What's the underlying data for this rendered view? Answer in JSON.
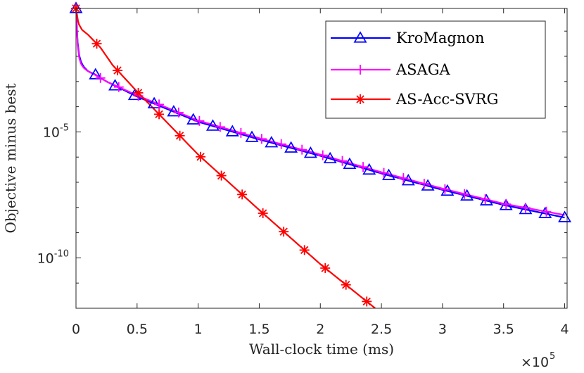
{
  "chart_data": {
    "type": "line",
    "xlabel": "Wall-clock time (ms)",
    "ylabel": "Objective minus best",
    "x_multiplier": "×10",
    "x_multiplier_exponent": "5",
    "xlim": [
      0,
      4.02
    ],
    "ylog10_lim": [
      -12,
      -0.1
    ],
    "x_tick_values": [
      0,
      0.5,
      1,
      1.5,
      2,
      2.5,
      3,
      3.5,
      4
    ],
    "x_tick_labels": [
      "0",
      "0.5",
      "1",
      "1.5",
      "2",
      "2.5",
      "3",
      "3.5",
      "4"
    ],
    "y_tick_log_values": [
      -5,
      -10
    ],
    "y_tick_labels": [
      {
        "base": "10",
        "exp": "-5"
      },
      {
        "base": "10",
        "exp": "-10"
      }
    ],
    "series": [
      {
        "name": "KroMagnon",
        "color": "#0000ff",
        "marker": "triangle",
        "x": [
          0,
          0.01,
          0.03,
          0.06,
          0.1,
          0.15,
          0.25,
          0.5,
          0.8,
          1.0,
          1.5,
          2.0,
          2.5,
          3.0,
          3.5,
          4.0
        ],
        "log10_y": [
          -0.1,
          -1.3,
          -2.1,
          -2.4,
          -2.6,
          -2.7,
          -3.0,
          -3.6,
          -4.2,
          -4.6,
          -5.3,
          -5.95,
          -6.65,
          -7.3,
          -7.9,
          -8.4
        ],
        "markers_x": [
          0,
          0.16,
          0.32,
          0.48,
          0.64,
          0.8,
          0.96,
          1.12,
          1.28,
          1.44,
          1.6,
          1.76,
          1.92,
          2.08,
          2.24,
          2.4,
          2.56,
          2.72,
          2.88,
          3.04,
          3.2,
          3.36,
          3.52,
          3.68,
          3.84,
          4.0
        ]
      },
      {
        "name": "ASAGA",
        "color": "#ff00ff",
        "marker": "plus",
        "x": [
          0,
          0.01,
          0.03,
          0.06,
          0.1,
          0.15,
          0.25,
          0.5,
          0.8,
          1.0,
          1.5,
          2.0,
          2.5,
          3.0,
          3.5,
          4.0
        ],
        "log10_y": [
          -0.1,
          -1.4,
          -2.2,
          -2.45,
          -2.6,
          -2.72,
          -3.0,
          -3.55,
          -4.15,
          -4.55,
          -5.25,
          -5.9,
          -6.6,
          -7.25,
          -7.85,
          -8.3
        ],
        "markers_x": [
          0,
          0.2,
          0.35,
          0.51,
          0.68,
          0.84,
          1.01,
          1.18,
          1.35,
          1.52,
          1.68,
          1.85,
          2.02,
          2.18,
          2.35,
          2.52,
          2.68,
          2.85,
          3.02,
          3.18,
          3.35,
          3.52,
          3.68,
          3.85
        ]
      },
      {
        "name": "AS-Acc-SVRG",
        "color": "#ff0000",
        "marker": "asterisk",
        "x": [
          0,
          0.02,
          0.05,
          0.1,
          0.15,
          0.2,
          0.3,
          0.5,
          1.0,
          1.5,
          2.0,
          2.5
        ],
        "log10_y": [
          -0.1,
          -0.7,
          -0.95,
          -1.15,
          -1.4,
          -1.65,
          -2.35,
          -3.4,
          -5.9,
          -8.1,
          -10.25,
          -12.2
        ],
        "markers_x": [
          0,
          0.17,
          0.34,
          0.51,
          0.68,
          0.85,
          1.02,
          1.19,
          1.36,
          1.53,
          1.7,
          1.87,
          2.04,
          2.21,
          2.38
        ]
      }
    ],
    "legend_position": "top-right"
  }
}
